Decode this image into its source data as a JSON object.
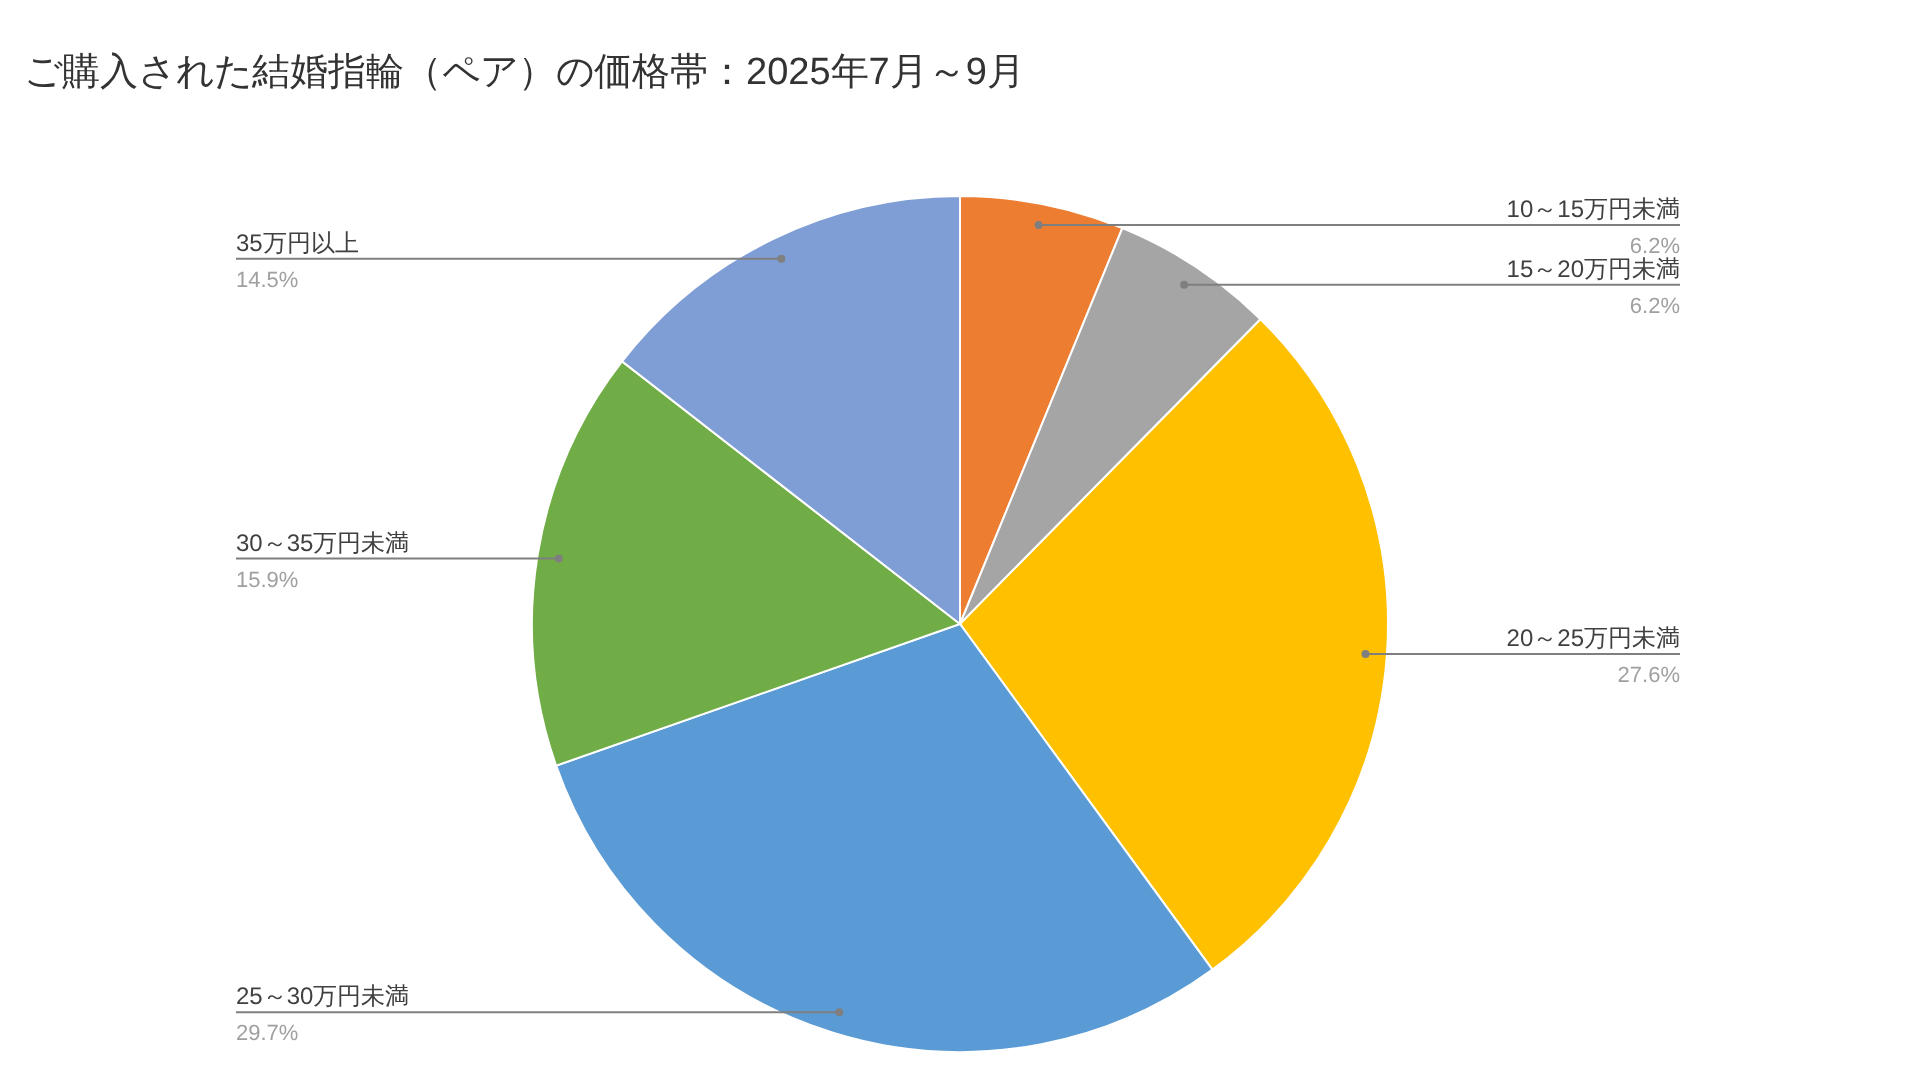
{
  "chart_data": {
    "type": "pie",
    "title": "ご購入された結婚指輪（ペア）の価格帯：2025年7月～9月",
    "categories": [
      "10～15万円未満",
      "15～20万円未満",
      "20～25万円未満",
      "25～30万円未満",
      "30～35万円未満",
      "35万円以上"
    ],
    "values": [
      6.2,
      6.2,
      27.6,
      29.7,
      15.9,
      14.5
    ],
    "value_labels": [
      "6.2%",
      "6.2%",
      "27.6%",
      "29.7%",
      "15.9%",
      "14.5%"
    ],
    "colors": [
      "#ed7d31",
      "#a5a5a5",
      "#ffc000",
      "#5b9bd5",
      "#70ad47",
      "#7f9ed6"
    ]
  }
}
